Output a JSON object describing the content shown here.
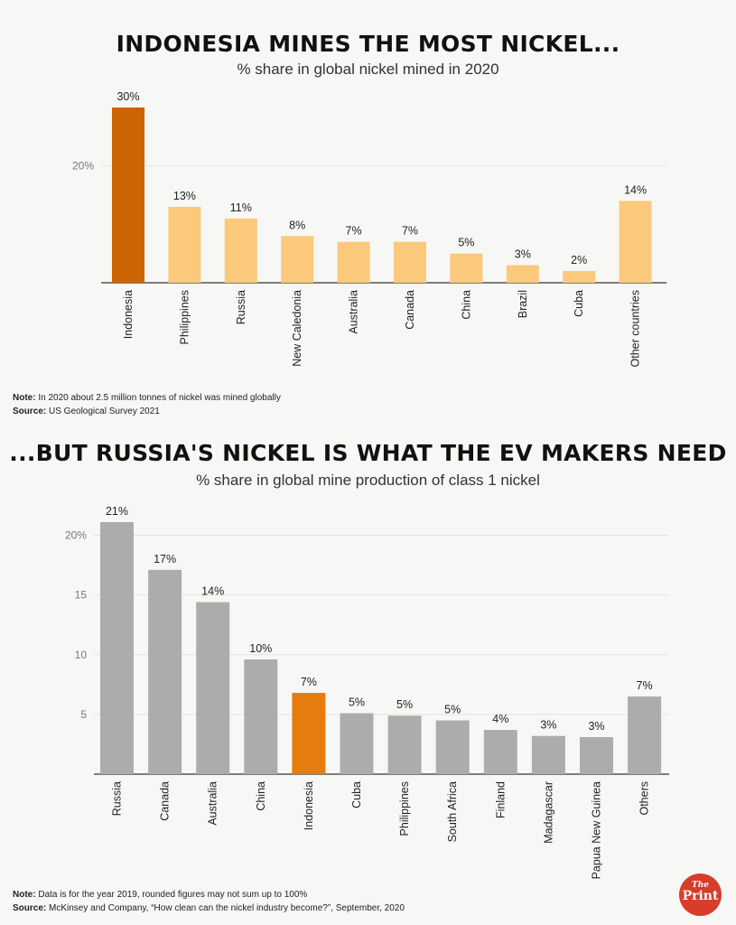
{
  "header1": {
    "title": "INDONESIA MINES THE MOST NICKEL...",
    "subtitle": "% share in global nickel mined in 2020"
  },
  "header2": {
    "title": "...BUT RUSSIA'S NICKEL IS WHAT THE EV MAKERS NEED",
    "subtitle": "% share in global mine production of class 1 nickel"
  },
  "notes1": {
    "note_label": "Note:",
    "note_text": "In 2020 about 2.5 million tonnes of nickel was mined globally",
    "source_label": "Source:",
    "source_text": "US Geological Survey 2021"
  },
  "notes2": {
    "note_label": "Note:",
    "note_text": "Data is for the year 2019, rounded figures may not sum up to 100%",
    "source_label": "Source:",
    "source_text": "McKinsey and Company, “How clean can the nickel industry become?”, September, 2020"
  },
  "logo": {
    "the": "The",
    "print": "Print"
  },
  "colors": {
    "highlight1": "#cc6404",
    "bar1": "#fbc97c",
    "highlight2": "#e67c0d",
    "bar2": "#acacac",
    "grid": "#e3e3e3"
  },
  "chart_data": [
    {
      "type": "bar",
      "title": "INDONESIA MINES THE MOST NICKEL...",
      "subtitle": "% share in global nickel mined in 2020",
      "categories": [
        "Indonesia",
        "Philippines",
        "Russia",
        "New Caledonia",
        "Australia",
        "Canada",
        "China",
        "Brazil",
        "Cuba",
        "Other countries"
      ],
      "values": [
        30,
        13,
        11,
        8,
        7,
        7,
        5,
        3,
        2,
        14
      ],
      "data_labels": [
        "30%",
        "13%",
        "11%",
        "8%",
        "7%",
        "7%",
        "5%",
        "3%",
        "2%",
        "14%"
      ],
      "ylim": [
        0,
        30
      ],
      "yticks": [
        20
      ],
      "ytick_labels": [
        "20%"
      ],
      "highlight": "Indonesia",
      "grid": true
    },
    {
      "type": "bar",
      "title": "...BUT RUSSIA'S NICKEL IS WHAT THE EV MAKERS NEED",
      "subtitle": "% share in global mine production of class 1 nickel",
      "categories": [
        "Russia",
        "Canada",
        "Australia",
        "China",
        "Indonesia",
        "Cuba",
        "Philippines",
        "South Africa",
        "Finland",
        "Madagascar",
        "Papua New Guinea",
        "Others"
      ],
      "values": [
        21.1,
        17.1,
        14.4,
        9.6,
        6.8,
        5.1,
        4.9,
        4.5,
        3.7,
        3.2,
        3.1,
        6.5
      ],
      "data_labels": [
        "21%",
        "17%",
        "14%",
        "10%",
        "7%",
        "5%",
        "5%",
        "5%",
        "4%",
        "3%",
        "3%",
        "7%"
      ],
      "ylim": [
        0,
        21.1
      ],
      "yticks": [
        5,
        10,
        15,
        20
      ],
      "ytick_labels": [
        "5",
        "10",
        "15",
        "20%"
      ],
      "highlight": "Indonesia",
      "grid": true
    }
  ]
}
